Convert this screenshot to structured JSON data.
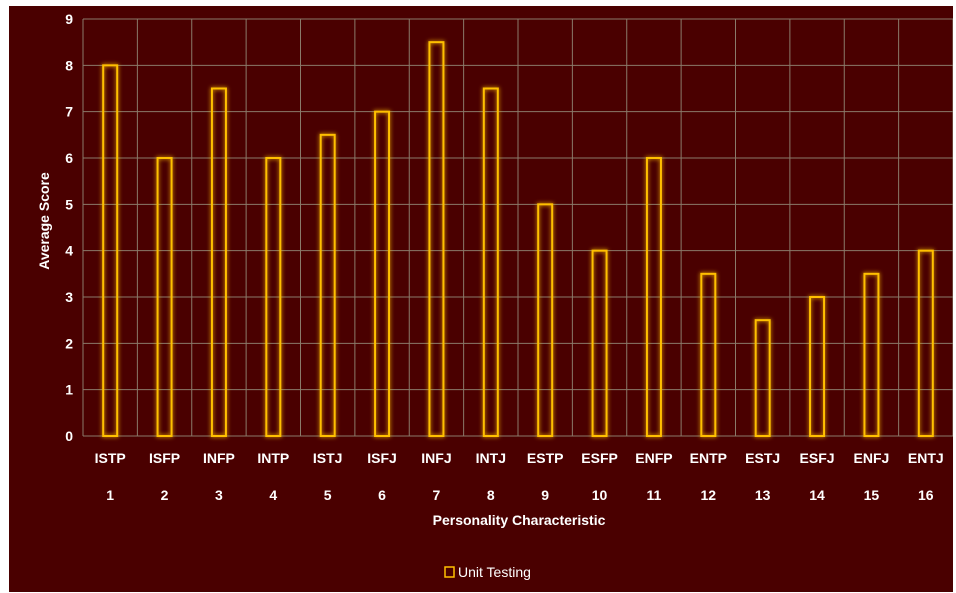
{
  "chart_data": {
    "type": "bar",
    "categories": [
      "ISTP",
      "ISFP",
      "INFP",
      "INTP",
      "ISTJ",
      "ISFJ",
      "INFJ",
      "INTJ",
      "ESTP",
      "ESFP",
      "ENFP",
      "ENTP",
      "ESTJ",
      "ESFJ",
      "ENFJ",
      "ENTJ"
    ],
    "category_numbers": [
      "1",
      "2",
      "3",
      "4",
      "5",
      "6",
      "7",
      "8",
      "9",
      "10",
      "11",
      "12",
      "13",
      "14",
      "15",
      "16"
    ],
    "series": [
      {
        "name": "Unit Testing",
        "values": [
          8,
          6,
          7.5,
          6,
          6.5,
          7,
          8.5,
          7.5,
          5,
          4,
          6,
          3.5,
          2.5,
          3,
          3.5,
          4
        ]
      }
    ],
    "xlabel": "Personality Characteristic",
    "ylabel": "Average Score",
    "ylim": [
      0,
      9
    ],
    "yticks": [
      "0",
      "1",
      "2",
      "3",
      "4",
      "5",
      "6",
      "7",
      "8",
      "9"
    ],
    "grid": true,
    "legend_position": "bottom",
    "colors": {
      "background": "#4a0000",
      "bar_stroke": "#ffc000",
      "grid": "#8a7a6a",
      "text": "#ffffff"
    }
  }
}
